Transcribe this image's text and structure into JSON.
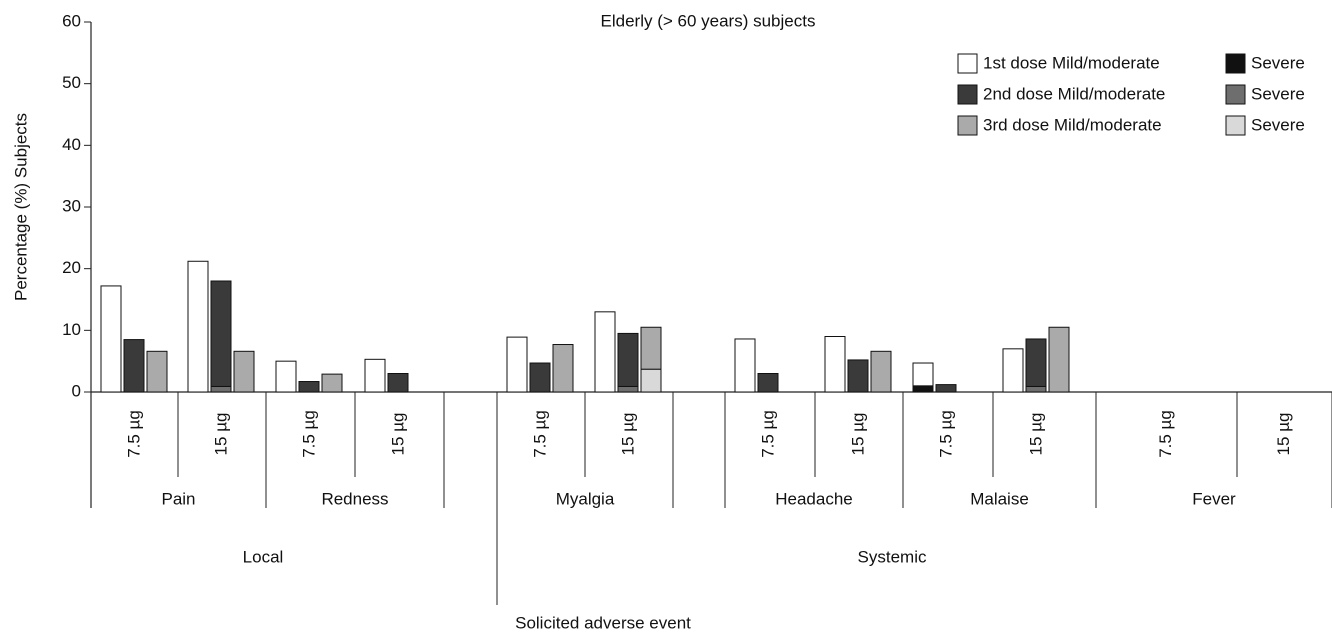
{
  "chart_data": {
    "type": "bar",
    "title": "Elderly (> 60 years) subjects",
    "y_label": "Percentage (%) Subjects",
    "x_label": "Solicited adverse event",
    "categories": [
      "7.5 µg",
      "15 µg",
      "7.5 µg",
      "15 µg",
      "7.5 µg",
      "15 µg",
      "7.5 µg",
      "15 µg",
      "7.5 µg",
      "15 µg",
      "7.5 µg",
      "15 µg"
    ],
    "events": [
      "Pain",
      "Redness",
      "Myalgia",
      "Headache",
      "Malaise",
      "Fever"
    ],
    "classes": [
      "Local",
      "Systemic"
    ],
    "series": [
      {
        "name": "1st dose Mild/moderate",
        "color": "#ffffff",
        "values": [
          17.2,
          21.2,
          5.0,
          5.3,
          8.9,
          13.0,
          8.6,
          9.0,
          3.7,
          7.0,
          0,
          0
        ]
      },
      {
        "name": "Severe",
        "color": "#111111",
        "values": [
          0,
          0,
          0,
          0,
          0,
          0,
          0,
          0,
          1.0,
          0,
          0,
          0
        ]
      },
      {
        "name": "2nd dose Mild/moderate",
        "color": "#3a3a3a",
        "values": [
          8.5,
          17.1,
          1.7,
          3.0,
          4.7,
          8.6,
          3.0,
          5.2,
          1.2,
          7.7,
          0,
          0
        ]
      },
      {
        "name": "Severe",
        "color": "#6e6e6e",
        "values": [
          0,
          0.9,
          0,
          0,
          0,
          0.9,
          0,
          0,
          0,
          0.9,
          0,
          0
        ]
      },
      {
        "name": "3rd dose Mild/moderate",
        "color": "#aaaaaa",
        "values": [
          6.6,
          6.6,
          2.9,
          0,
          7.7,
          6.8,
          0,
          6.6,
          0,
          10.5,
          0,
          0
        ]
      },
      {
        "name": "Severe",
        "color": "#d9d9d9",
        "values": [
          0,
          0,
          0,
          0,
          0,
          3.7,
          0,
          0,
          0,
          0,
          0,
          0
        ]
      }
    ],
    "ylim": [
      0,
      60
    ],
    "yticks": [
      0,
      10,
      20,
      30,
      40,
      50,
      60
    ]
  }
}
